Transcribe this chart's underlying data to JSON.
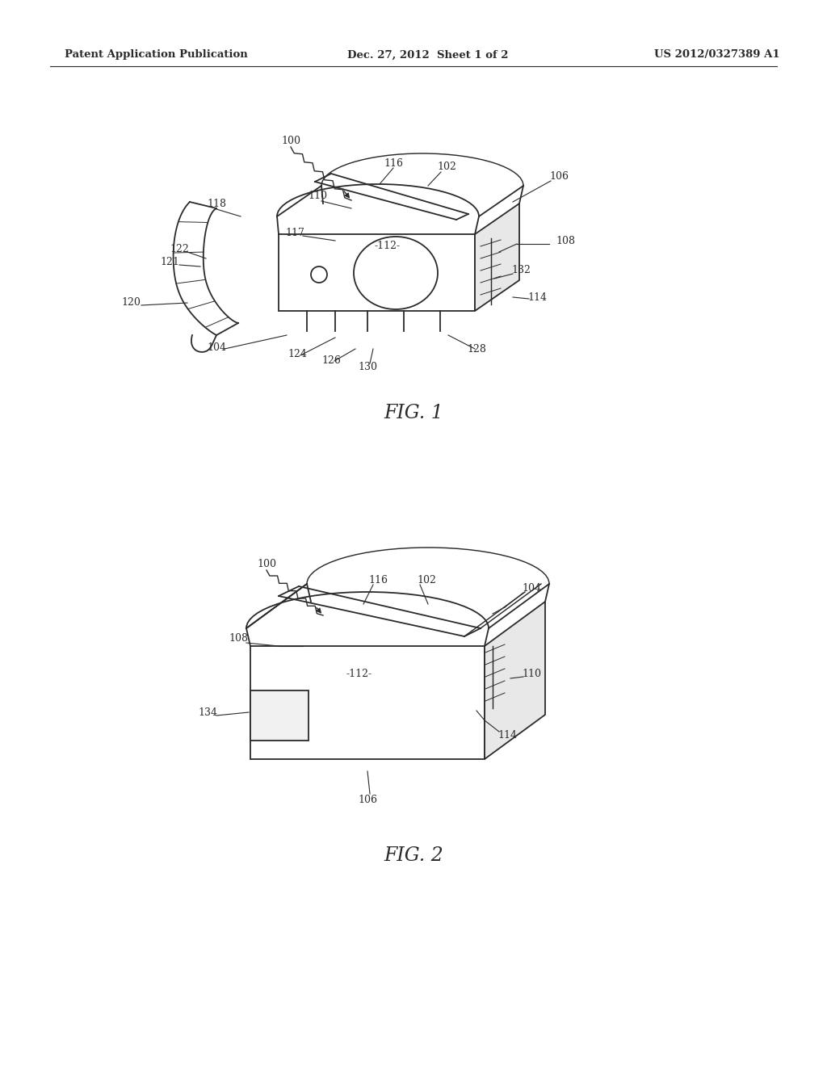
{
  "bg_color": "#ffffff",
  "header_left": "Patent Application Publication",
  "header_center": "Dec. 27, 2012  Sheet 1 of 2",
  "header_right": "US 2012/0327389 A1",
  "fig1_label": "FIG. 1",
  "fig2_label": "FIG. 2",
  "line_color": "#2a2a2a",
  "text_color": "#2a2a2a"
}
